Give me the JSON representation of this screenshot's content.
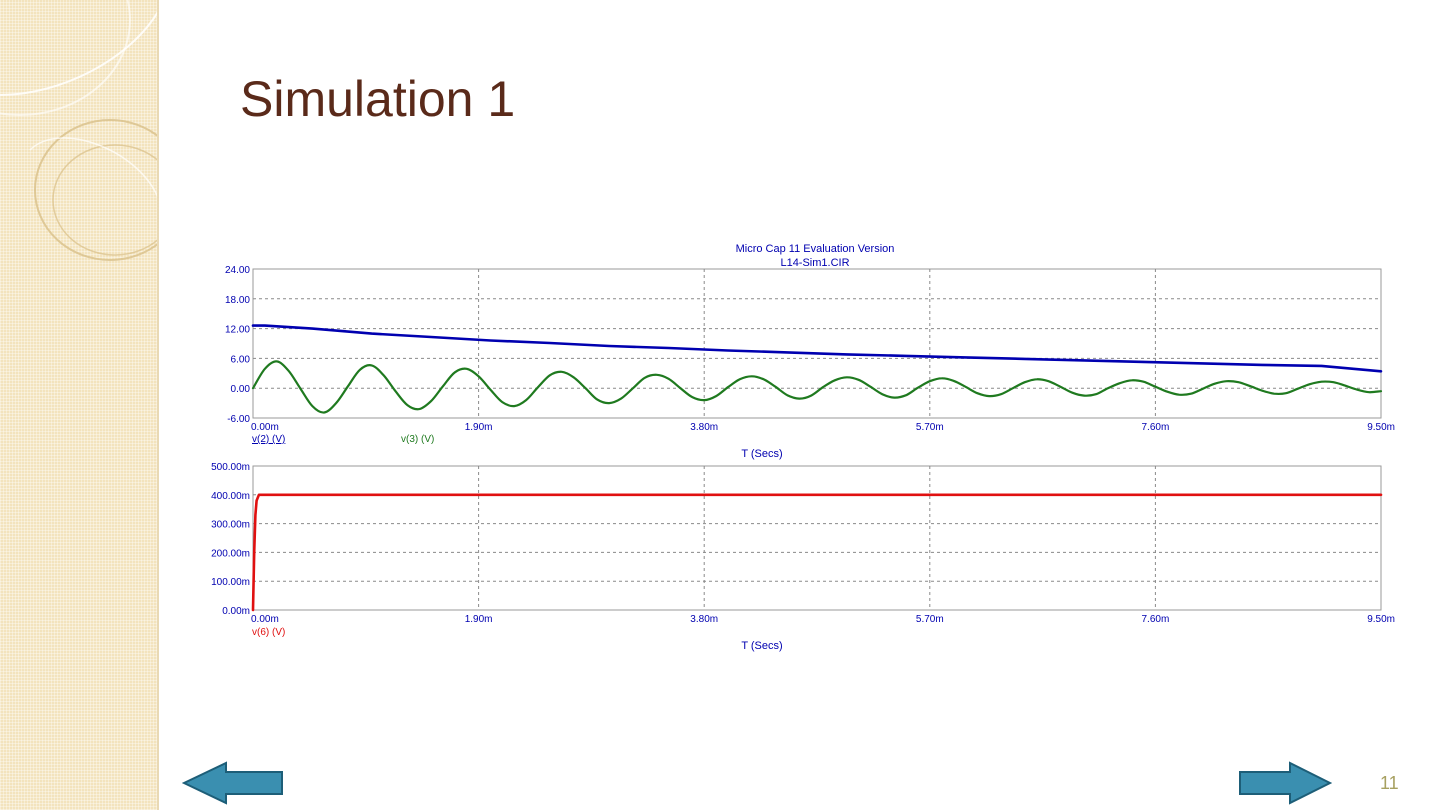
{
  "slide": {
    "title": "Simulation 1",
    "page_number": "11",
    "colors": {
      "title": "#5a2a1a",
      "sidebar": "#f3e3bd",
      "arrow": "#3a8fb0",
      "page_number": "#a7a060"
    },
    "nav": {
      "prev_icon": "left-arrow-icon",
      "next_icon": "right-arrow-icon"
    }
  },
  "chart_data": [
    {
      "type": "line",
      "title": "Micro Cap 11 Evaluation Version",
      "subtitle": "L14-Sim1.CIR",
      "xlabel": "T (Secs)",
      "xlim": [
        0,
        9.5
      ],
      "x_ticks": [
        "0.00m",
        "1.90m",
        "3.80m",
        "5.70m",
        "7.60m",
        "9.50m"
      ],
      "ylim": [
        -6,
        24
      ],
      "y_ticks": [
        "24.00",
        "18.00",
        "12.00",
        "6.00",
        "0.00",
        "-6.00"
      ],
      "grid": true,
      "series": [
        {
          "name": "v(2) (V)",
          "color": "#0000b0",
          "x": [
            0,
            0.1,
            0.5,
            1.0,
            1.5,
            2.0,
            2.5,
            3.0,
            3.5,
            4.0,
            4.5,
            5.0,
            5.5,
            6.0,
            6.5,
            7.0,
            7.5,
            8.0,
            8.5,
            9.0,
            9.5
          ],
          "y": [
            12.6,
            12.6,
            12.0,
            11.0,
            10.3,
            9.6,
            9.1,
            8.5,
            8.1,
            7.6,
            7.2,
            6.8,
            6.5,
            6.2,
            5.9,
            5.6,
            5.3,
            5.0,
            4.7,
            4.5,
            3.4
          ]
        },
        {
          "name": "v(3) (V)",
          "color": "#1f7a1f",
          "x": [
            0,
            0.1,
            0.2,
            0.3,
            0.4,
            0.5,
            0.6,
            0.7,
            0.8,
            0.9,
            1.0,
            1.1,
            1.2,
            1.3,
            1.4,
            1.5,
            1.6,
            1.7,
            1.8,
            1.9,
            2.0,
            2.1,
            2.2,
            2.3,
            2.4,
            2.5,
            2.6,
            2.7,
            2.8,
            2.9,
            3.0,
            3.1,
            3.2,
            3.3,
            3.4,
            3.5,
            3.6,
            3.7,
            3.8,
            3.9,
            4.0,
            4.1,
            4.2,
            4.3,
            4.4,
            4.5,
            4.6,
            4.7,
            4.8,
            4.9,
            5.0,
            5.1,
            5.2,
            5.3,
            5.4,
            5.5,
            5.6,
            5.7,
            5.8,
            5.9,
            6.0,
            6.1,
            6.2,
            6.3,
            6.4,
            6.5,
            6.6,
            6.7,
            6.8,
            6.9,
            7.0,
            7.1,
            7.2,
            7.3,
            7.4,
            7.5,
            7.6,
            7.7,
            7.8,
            7.9,
            8.0,
            8.1,
            8.2,
            8.3,
            8.4,
            8.5,
            8.6,
            8.7,
            8.8,
            8.9,
            9.0,
            9.1,
            9.2,
            9.3,
            9.4,
            9.5
          ],
          "y": [
            0,
            3.9,
            5.4,
            3.5,
            -0.1,
            -3.6,
            -4.9,
            -3.0,
            0.4,
            3.7,
            4.6,
            2.6,
            -0.6,
            -3.4,
            -4.2,
            -2.6,
            0.4,
            3.2,
            3.9,
            2.4,
            -0.3,
            -2.8,
            -3.6,
            -2.4,
            0.2,
            2.6,
            3.3,
            2.2,
            0.0,
            -2.3,
            -3.0,
            -2.1,
            0.0,
            2.1,
            2.7,
            1.9,
            0.0,
            -1.8,
            -2.4,
            -1.6,
            0.2,
            1.8,
            2.4,
            1.8,
            0.3,
            -1.4,
            -2.1,
            -1.5,
            0.2,
            1.6,
            2.2,
            1.7,
            0.3,
            -1.2,
            -1.9,
            -1.4,
            0.1,
            1.4,
            2.0,
            1.5,
            0.3,
            -1.0,
            -1.6,
            -1.2,
            0.0,
            1.2,
            1.8,
            1.4,
            0.3,
            -0.9,
            -1.5,
            -1.2,
            0.0,
            1.0,
            1.6,
            1.3,
            0.3,
            -0.7,
            -1.3,
            -1.1,
            -0.1,
            0.9,
            1.4,
            1.2,
            0.4,
            -0.5,
            -1.1,
            -1.0,
            -0.1,
            0.8,
            1.3,
            1.2,
            0.5,
            -0.3,
            -0.8,
            -0.6
          ]
        }
      ]
    },
    {
      "type": "line",
      "xlabel": "T (Secs)",
      "xlim": [
        0,
        9.5
      ],
      "x_ticks": [
        "0.00m",
        "1.90m",
        "3.80m",
        "5.70m",
        "7.60m",
        "9.50m"
      ],
      "ylim": [
        0,
        500
      ],
      "y_ticks": [
        "500.00m",
        "400.00m",
        "300.00m",
        "200.00m",
        "100.00m",
        "0.00m"
      ],
      "grid": true,
      "series": [
        {
          "name": "v(6) (V)",
          "color": "#e01010",
          "x": [
            0,
            0.01,
            0.02,
            0.03,
            0.05,
            9.5
          ],
          "y": [
            0,
            200,
            330,
            380,
            400,
            400
          ]
        }
      ]
    }
  ]
}
